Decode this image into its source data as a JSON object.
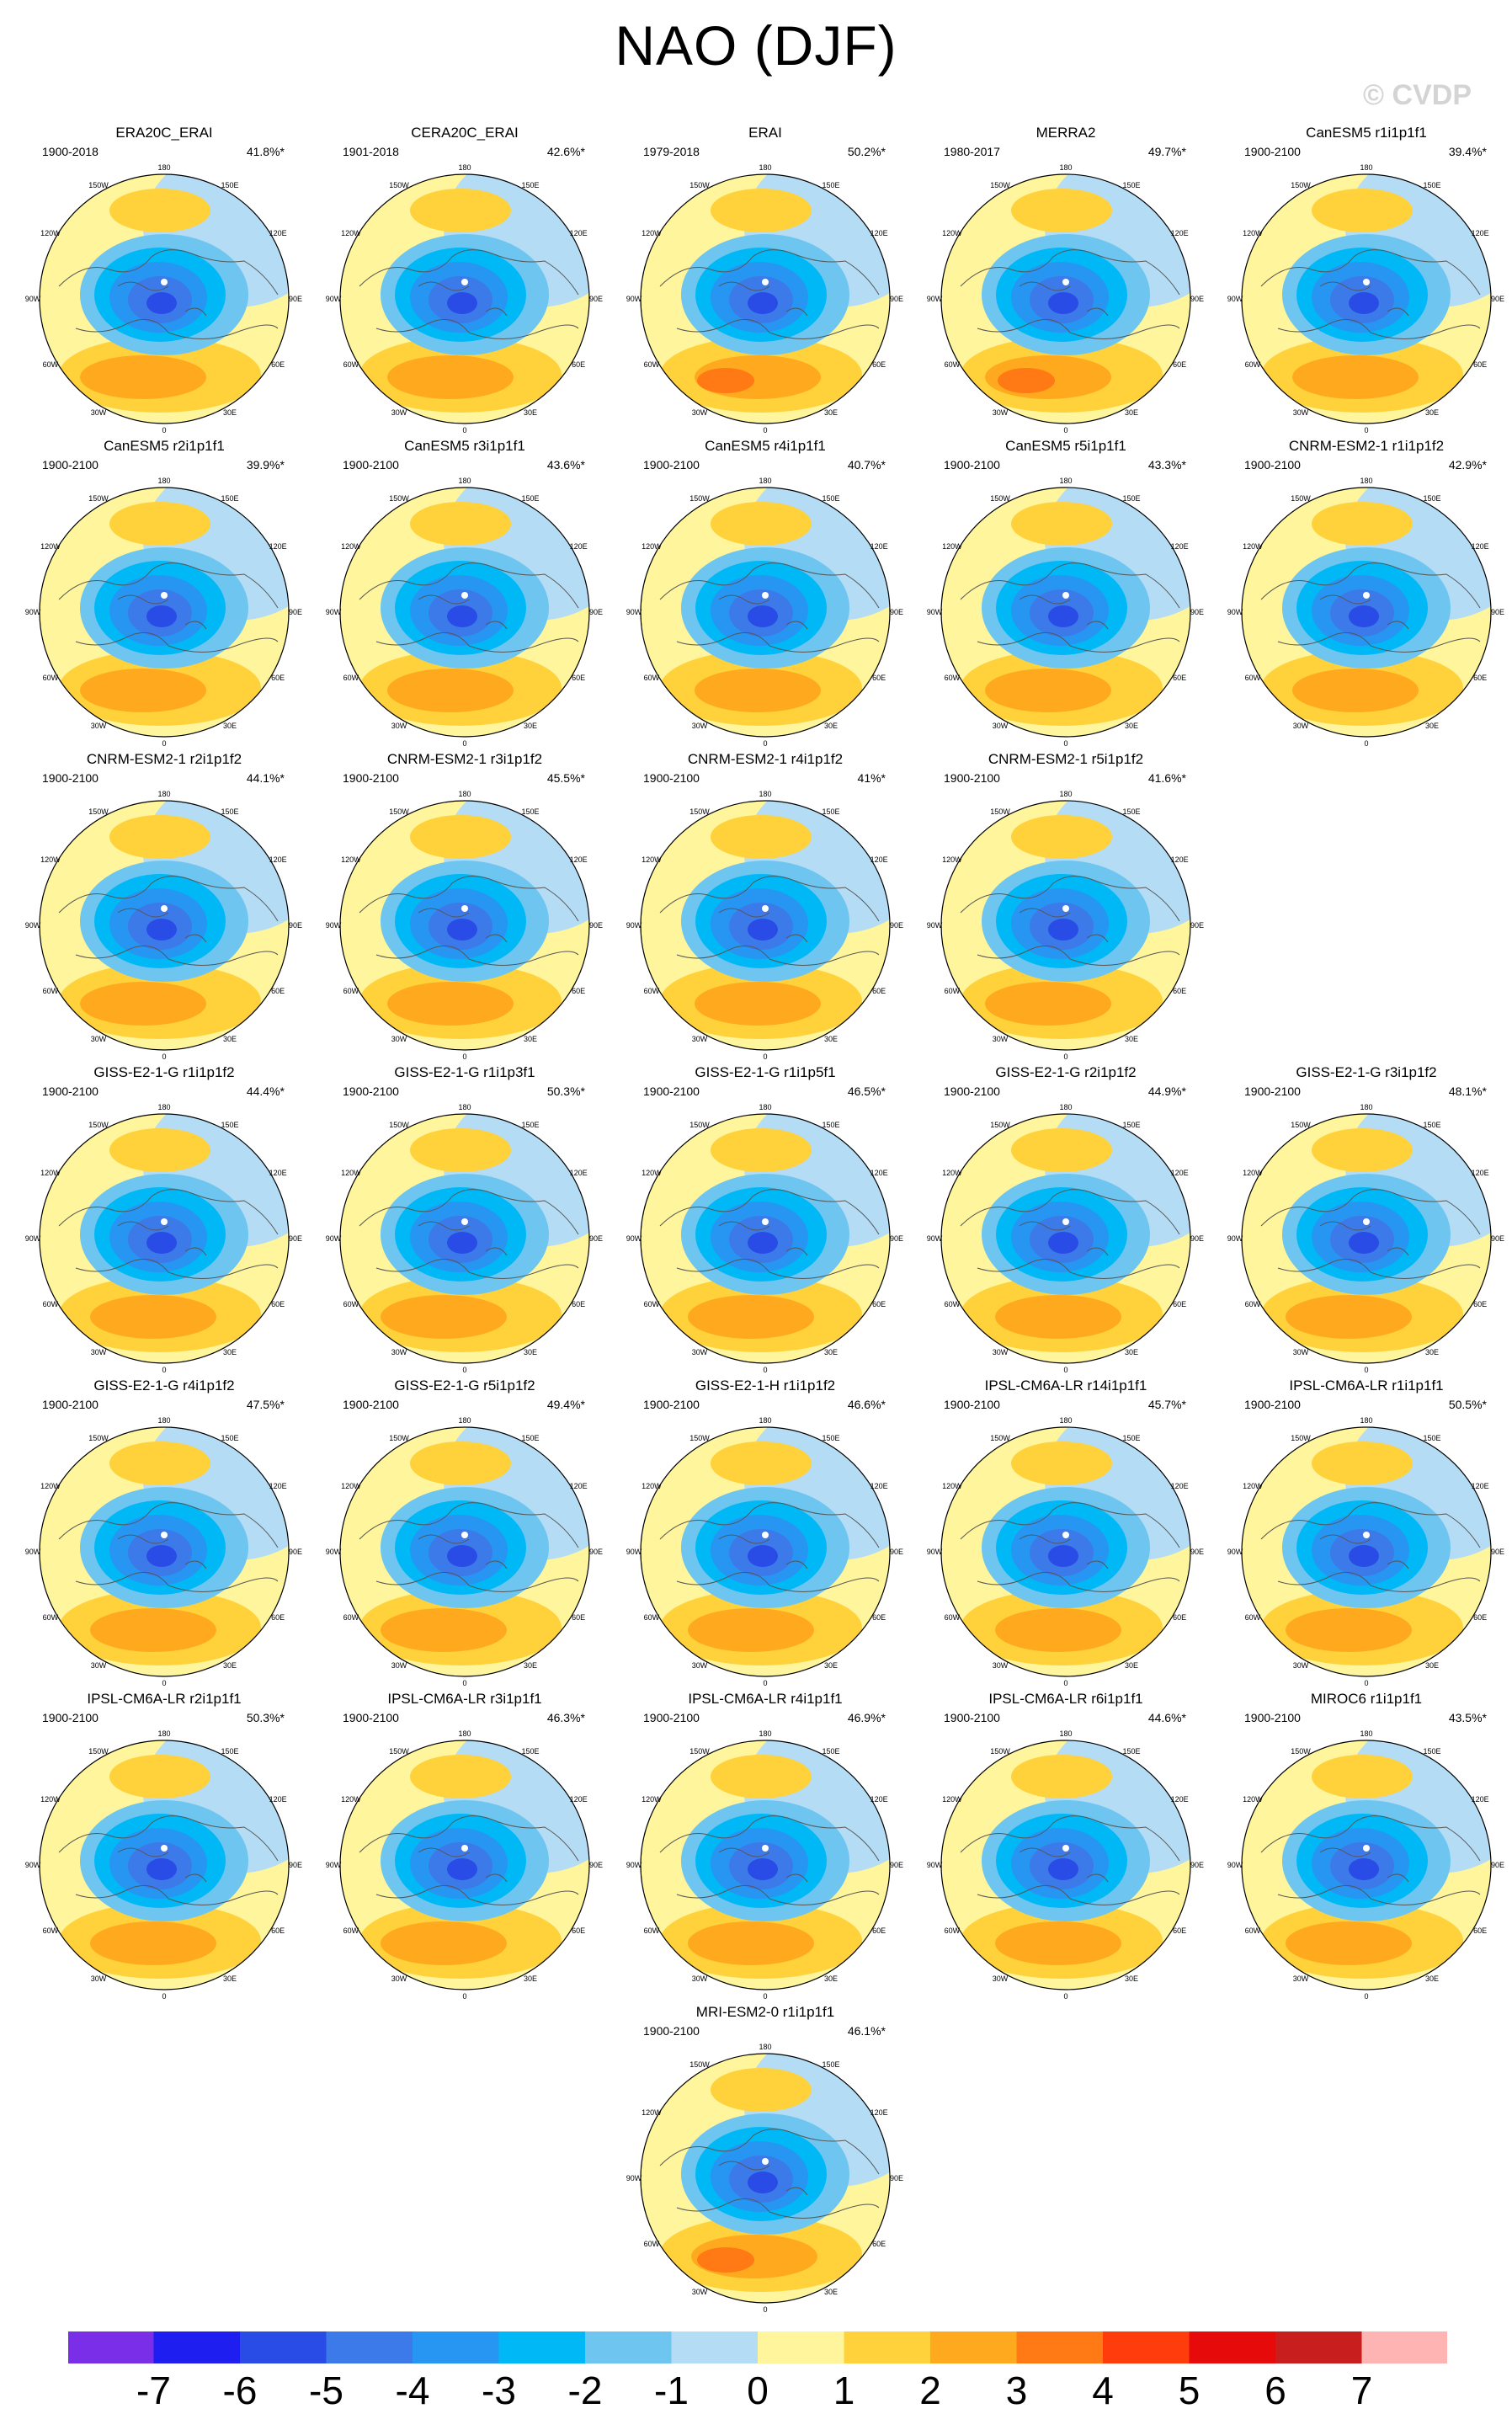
{
  "title": "NAO (DJF)",
  "watermark": "© CVDP",
  "chart_data": {
    "type": "contour-map-panels",
    "title": "NAO (DJF)",
    "projection": "north polar stereographic",
    "longitude_labels": [
      "180",
      "150E",
      "120E",
      "90E",
      "60E",
      "30E",
      "0",
      "30W",
      "60W",
      "90W",
      "120W",
      "150W"
    ],
    "colorbar": {
      "ticks": [
        "-7",
        "-6",
        "-5",
        "-4",
        "-3",
        "-2",
        "-1",
        "0",
        "1",
        "2",
        "3",
        "4",
        "5",
        "6",
        "7"
      ],
      "colors": [
        "#7a2ee8",
        "#1e1ef0",
        "#2a4ce6",
        "#3d7ae9",
        "#2696f2",
        "#00b8f5",
        "#6ec6f0",
        "#b4dcf4",
        "#fff59c",
        "#ffd23c",
        "#ffaa1e",
        "#ff7a14",
        "#ff3c0c",
        "#e60a0a",
        "#c81e1e",
        "#ffb4b4"
      ]
    },
    "panels": [
      {
        "name": "ERA20C_ERAI",
        "period": "1900-2018",
        "pct": "41.8%*"
      },
      {
        "name": "CERA20C_ERAI",
        "period": "1901-2018",
        "pct": "42.6%*"
      },
      {
        "name": "ERAI",
        "period": "1979-2018",
        "pct": "50.2%*"
      },
      {
        "name": "MERRA2",
        "period": "1980-2017",
        "pct": "49.7%*"
      },
      {
        "name": "CanESM5 r1i1p1f1",
        "period": "1900-2100",
        "pct": "39.4%*"
      },
      {
        "name": "CanESM5 r2i1p1f1",
        "period": "1900-2100",
        "pct": "39.9%*"
      },
      {
        "name": "CanESM5 r3i1p1f1",
        "period": "1900-2100",
        "pct": "43.6%*"
      },
      {
        "name": "CanESM5 r4i1p1f1",
        "period": "1900-2100",
        "pct": "40.7%*"
      },
      {
        "name": "CanESM5 r5i1p1f1",
        "period": "1900-2100",
        "pct": "43.3%*"
      },
      {
        "name": "CNRM-ESM2-1 r1i1p1f2",
        "period": "1900-2100",
        "pct": "42.9%*"
      },
      {
        "name": "CNRM-ESM2-1 r2i1p1f2",
        "period": "1900-2100",
        "pct": "44.1%*"
      },
      {
        "name": "CNRM-ESM2-1 r3i1p1f2",
        "period": "1900-2100",
        "pct": "45.5%*"
      },
      {
        "name": "CNRM-ESM2-1 r4i1p1f2",
        "period": "1900-2100",
        "pct": "41%*"
      },
      {
        "name": "CNRM-ESM2-1 r5i1p1f2",
        "period": "1900-2100",
        "pct": "41.6%*"
      },
      {
        "name": "GISS-E2-1-G r1i1p1f2",
        "period": "1900-2100",
        "pct": "44.4%*"
      },
      {
        "name": "GISS-E2-1-G r1i1p3f1",
        "period": "1900-2100",
        "pct": "50.3%*"
      },
      {
        "name": "GISS-E2-1-G r1i1p5f1",
        "period": "1900-2100",
        "pct": "46.5%*"
      },
      {
        "name": "GISS-E2-1-G r2i1p1f2",
        "period": "1900-2100",
        "pct": "44.9%*"
      },
      {
        "name": "GISS-E2-1-G r3i1p1f2",
        "period": "1900-2100",
        "pct": "48.1%*"
      },
      {
        "name": "GISS-E2-1-G r4i1p1f2",
        "period": "1900-2100",
        "pct": "47.5%*"
      },
      {
        "name": "GISS-E2-1-G r5i1p1f2",
        "period": "1900-2100",
        "pct": "49.4%*"
      },
      {
        "name": "GISS-E2-1-H r1i1p1f2",
        "period": "1900-2100",
        "pct": "46.6%*"
      },
      {
        "name": "IPSL-CM6A-LR r14i1p1f1",
        "period": "1900-2100",
        "pct": "45.7%*"
      },
      {
        "name": "IPSL-CM6A-LR r1i1p1f1",
        "period": "1900-2100",
        "pct": "50.5%*"
      },
      {
        "name": "IPSL-CM6A-LR r2i1p1f1",
        "period": "1900-2100",
        "pct": "50.3%*"
      },
      {
        "name": "IPSL-CM6A-LR r3i1p1f1",
        "period": "1900-2100",
        "pct": "46.3%*"
      },
      {
        "name": "IPSL-CM6A-LR r4i1p1f1",
        "period": "1900-2100",
        "pct": "46.9%*"
      },
      {
        "name": "IPSL-CM6A-LR r6i1p1f1",
        "period": "1900-2100",
        "pct": "44.6%*"
      },
      {
        "name": "MIROC6 r1i1p1f1",
        "period": "1900-2100",
        "pct": "43.5%*"
      },
      {
        "name": "MRI-ESM2-0 r1i1p1f1",
        "period": "1900-2100",
        "pct": "46.1%*"
      }
    ]
  }
}
